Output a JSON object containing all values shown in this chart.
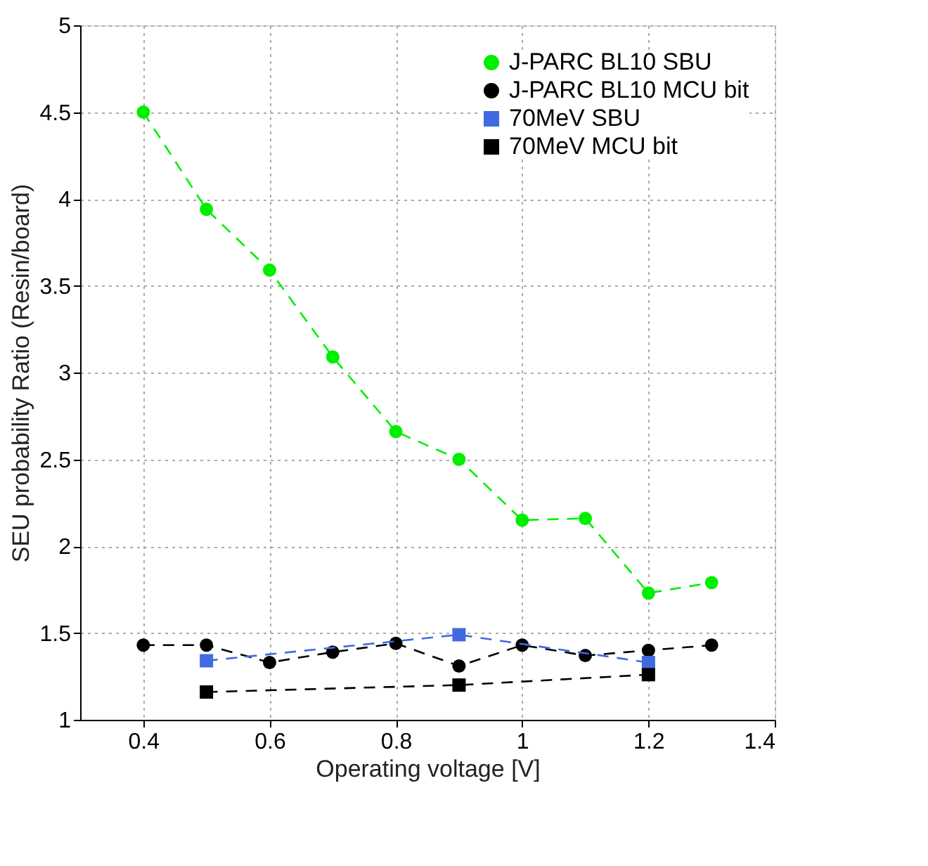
{
  "chart_data": {
    "type": "line",
    "xlabel": "Operating voltage [V]",
    "ylabel": "SEU probability Ratio (Resin/board)",
    "xlim": [
      0.3,
      1.4
    ],
    "xticks": [
      0.4,
      0.6,
      0.8,
      1,
      1.2,
      1.4
    ],
    "ylim": [
      1,
      5
    ],
    "yticks": [
      1,
      1.5,
      2,
      2.5,
      3,
      3.5,
      4,
      4.5,
      5
    ],
    "grid": true,
    "legend": "top right",
    "line_style": "dashed",
    "series": [
      {
        "name": "J-PARC BL10 SBU",
        "color": "#00ee00",
        "marker": "circle",
        "x": [
          0.4,
          0.5,
          0.6,
          0.7,
          0.8,
          0.9,
          1.0,
          1.1,
          1.2,
          1.3
        ],
        "values": [
          4.5,
          3.94,
          3.59,
          3.09,
          2.66,
          2.5,
          2.15,
          2.16,
          1.73,
          1.79
        ]
      },
      {
        "name": "J-PARC BL10 MCU bit",
        "color": "#000000",
        "marker": "circle",
        "x": [
          0.4,
          0.5,
          0.6,
          0.7,
          0.8,
          0.9,
          1.0,
          1.1,
          1.2,
          1.3
        ],
        "values": [
          1.43,
          1.43,
          1.33,
          1.39,
          1.44,
          1.31,
          1.43,
          1.37,
          1.4,
          1.43
        ]
      },
      {
        "name": "70MeV SBU",
        "color": "#4169e1",
        "marker": "square",
        "x": [
          0.5,
          0.9,
          1.2
        ],
        "values": [
          1.34,
          1.49,
          1.33
        ]
      },
      {
        "name": "70MeV MCU bit",
        "color": "#000000",
        "marker": "square",
        "x": [
          0.5,
          0.9,
          1.2
        ],
        "values": [
          1.16,
          1.2,
          1.26
        ]
      }
    ]
  }
}
